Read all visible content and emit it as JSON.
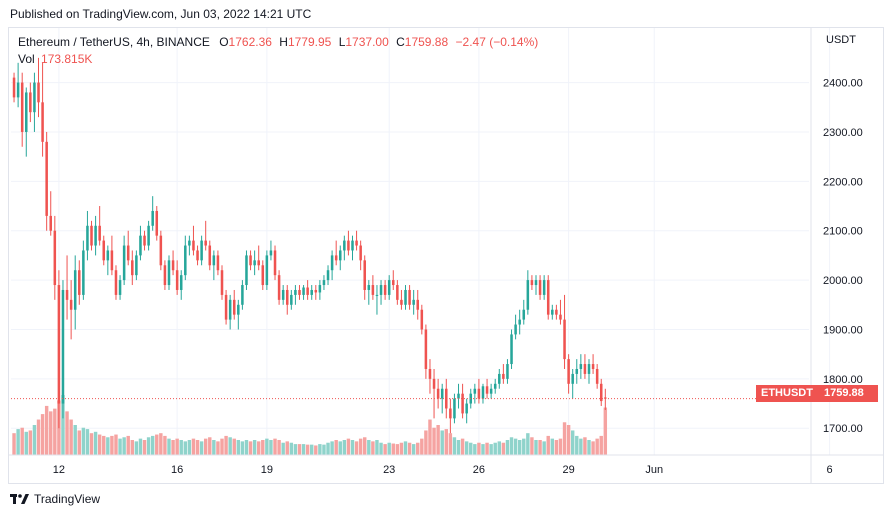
{
  "header": {
    "published": "Published on TradingView.com, Jun 03, 2022 14:21 UTC"
  },
  "legend": {
    "symbol": "Ethereum / TetherUS, 4h, BINANCE",
    "o_label": "O",
    "o_value": "1762.36",
    "h_label": "H",
    "h_value": "1779.95",
    "l_label": "L",
    "l_value": "1737.00",
    "c_label": "C",
    "c_value": "1759.88",
    "change": "−2.47 (−0.14%)",
    "vol_label": "Vol",
    "vol_value": "173.815K"
  },
  "price_axis": {
    "currency": "USDT",
    "ticks": [
      "2400.00",
      "2300.00",
      "2200.00",
      "2100.00",
      "2000.00",
      "1900.00",
      "1800.00",
      "1700.00"
    ],
    "tick_values": [
      2400,
      2300,
      2200,
      2100,
      2000,
      1900,
      1800,
      1700
    ]
  },
  "last_price": {
    "ticker": "ETHUSDT",
    "value": "1759.88",
    "numeric": 1759.88
  },
  "footer": {
    "brand": "TradingView",
    "logo_icon": "tradingview-logo-icon"
  },
  "colors": {
    "up": "#26a69a",
    "down": "#ef5350",
    "vol_up": "#8fd3cb",
    "vol_down": "#f5a3a1",
    "grid": "#f0f3fa"
  },
  "chart_data": {
    "type": "candlestick",
    "symbol": "Ethereum / TetherUS",
    "interval": "4h",
    "exchange": "BINANCE",
    "ylim": [
      1660,
      2470
    ],
    "x_tick_labels": [
      "12",
      "16",
      "19",
      "23",
      "26",
      "29",
      "Jun",
      "6"
    ],
    "x_tick_bar_index": [
      11,
      40,
      62,
      92,
      114,
      136,
      157,
      200
    ],
    "grid": true,
    "candles": [
      [
        2410,
        2420,
        2360,
        2370,
        80
      ],
      [
        2370,
        2440,
        2350,
        2400,
        95
      ],
      [
        2400,
        2420,
        2270,
        2300,
        100
      ],
      [
        2300,
        2390,
        2250,
        2380,
        85
      ],
      [
        2380,
        2400,
        2320,
        2340,
        90
      ],
      [
        2340,
        2420,
        2300,
        2400,
        110
      ],
      [
        2400,
        2450,
        2330,
        2360,
        130
      ],
      [
        2360,
        2440,
        2250,
        2280,
        150
      ],
      [
        2280,
        2300,
        2100,
        2130,
        180
      ],
      [
        2130,
        2180,
        2090,
        2100,
        160
      ],
      [
        2100,
        2130,
        1960,
        1990,
        170
      ],
      [
        1990,
        2020,
        1700,
        1750,
        200
      ],
      [
        1750,
        2000,
        1720,
        1980,
        220
      ],
      [
        1980,
        2050,
        1920,
        1960,
        160
      ],
      [
        1960,
        2000,
        1880,
        1940,
        130
      ],
      [
        1940,
        2050,
        1900,
        2020,
        110
      ],
      [
        2020,
        2040,
        1950,
        1970,
        90
      ],
      [
        1970,
        2080,
        1960,
        2060,
        100
      ],
      [
        2060,
        2140,
        2040,
        2110,
        95
      ],
      [
        2110,
        2120,
        2060,
        2070,
        80
      ],
      [
        2070,
        2130,
        2050,
        2110,
        85
      ],
      [
        2110,
        2150,
        2070,
        2080,
        75
      ],
      [
        2080,
        2090,
        2030,
        2040,
        70
      ],
      [
        2040,
        2070,
        2010,
        2060,
        65
      ],
      [
        2060,
        2090,
        2010,
        2020,
        70
      ],
      [
        2020,
        2030,
        1960,
        1970,
        75
      ],
      [
        1970,
        2010,
        1960,
        2000,
        60
      ],
      [
        2000,
        2090,
        1990,
        2070,
        65
      ],
      [
        2070,
        2100,
        2030,
        2040,
        70
      ],
      [
        2040,
        2060,
        1990,
        2010,
        55
      ],
      [
        2010,
        2060,
        2000,
        2050,
        50
      ],
      [
        2050,
        2110,
        2040,
        2090,
        60
      ],
      [
        2090,
        2100,
        2060,
        2070,
        55
      ],
      [
        2070,
        2120,
        2060,
        2110,
        65
      ],
      [
        2110,
        2170,
        2100,
        2140,
        70
      ],
      [
        2140,
        2150,
        2080,
        2090,
        75
      ],
      [
        2090,
        2100,
        2020,
        2030,
        80
      ],
      [
        2030,
        2040,
        1980,
        1990,
        70
      ],
      [
        1990,
        2050,
        1980,
        2040,
        60
      ],
      [
        2040,
        2060,
        2010,
        2020,
        55
      ],
      [
        2020,
        2040,
        1970,
        1980,
        60
      ],
      [
        1980,
        2020,
        1960,
        2010,
        55
      ],
      [
        2010,
        2090,
        2000,
        2070,
        50
      ],
      [
        2070,
        2090,
        2050,
        2080,
        55
      ],
      [
        2080,
        2110,
        2050,
        2060,
        60
      ],
      [
        2060,
        2070,
        2030,
        2040,
        55
      ],
      [
        2040,
        2090,
        2030,
        2080,
        50
      ],
      [
        2080,
        2120,
        2060,
        2070,
        60
      ],
      [
        2070,
        2080,
        2020,
        2030,
        65
      ],
      [
        2030,
        2060,
        2000,
        2050,
        55
      ],
      [
        2050,
        2060,
        2010,
        2020,
        50
      ],
      [
        2020,
        2030,
        1960,
        1970,
        60
      ],
      [
        1970,
        1980,
        1910,
        1920,
        70
      ],
      [
        1920,
        1970,
        1900,
        1960,
        65
      ],
      [
        1960,
        1980,
        1920,
        1930,
        60
      ],
      [
        1930,
        1960,
        1900,
        1950,
        55
      ],
      [
        1950,
        2000,
        1940,
        1990,
        50
      ],
      [
        1990,
        2060,
        1980,
        2050,
        55
      ],
      [
        2050,
        2060,
        2020,
        2030,
        50
      ],
      [
        2030,
        2060,
        2010,
        2040,
        55
      ],
      [
        2040,
        2070,
        2020,
        2030,
        50
      ],
      [
        2030,
        2040,
        1980,
        1990,
        55
      ],
      [
        1990,
        2060,
        1980,
        2050,
        60
      ],
      [
        2050,
        2080,
        2040,
        2060,
        55
      ],
      [
        2060,
        2070,
        2000,
        2010,
        60
      ],
      [
        2010,
        2020,
        1950,
        1960,
        55
      ],
      [
        1960,
        1990,
        1950,
        1980,
        45
      ],
      [
        1980,
        1990,
        1930,
        1950,
        50
      ],
      [
        1950,
        1980,
        1940,
        1970,
        45
      ],
      [
        1970,
        1990,
        1950,
        1980,
        40
      ],
      [
        1980,
        1990,
        1960,
        1970,
        40
      ],
      [
        1970,
        1990,
        1960,
        1985,
        40
      ],
      [
        1985,
        2000,
        1960,
        1970,
        38
      ],
      [
        1970,
        1990,
        1960,
        1980,
        38
      ],
      [
        1980,
        1990,
        1960,
        1975,
        35
      ],
      [
        1975,
        2000,
        1960,
        1990,
        40
      ],
      [
        1990,
        2010,
        1980,
        2000,
        38
      ],
      [
        2000,
        2030,
        1990,
        2020,
        45
      ],
      [
        2020,
        2060,
        2000,
        2050,
        50
      ],
      [
        2050,
        2080,
        2030,
        2040,
        55
      ],
      [
        2040,
        2070,
        2020,
        2060,
        50
      ],
      [
        2060,
        2090,
        2040,
        2080,
        55
      ],
      [
        2080,
        2100,
        2050,
        2060,
        60
      ],
      [
        2060,
        2090,
        2040,
        2080,
        55
      ],
      [
        2080,
        2100,
        2060,
        2070,
        50
      ],
      [
        2070,
        2080,
        2020,
        2040,
        60
      ],
      [
        2040,
        2050,
        1960,
        1980,
        65
      ],
      [
        1980,
        2000,
        1950,
        1990,
        55
      ],
      [
        1990,
        2010,
        1960,
        1970,
        50
      ],
      [
        1970,
        1990,
        1930,
        1970,
        55
      ],
      [
        1970,
        2000,
        1950,
        1990,
        45
      ],
      [
        1990,
        2000,
        1960,
        1970,
        40
      ],
      [
        1970,
        2010,
        1960,
        2000,
        45
      ],
      [
        2000,
        2020,
        1980,
        1990,
        42
      ],
      [
        1990,
        2000,
        1950,
        1960,
        40
      ],
      [
        1960,
        1980,
        1940,
        1950,
        45
      ],
      [
        1950,
        1990,
        1940,
        1980,
        50
      ],
      [
        1980,
        1990,
        1940,
        1950,
        45
      ],
      [
        1950,
        1980,
        1930,
        1960,
        40
      ],
      [
        1960,
        1980,
        1920,
        1940,
        45
      ],
      [
        1940,
        1950,
        1890,
        1900,
        60
      ],
      [
        1900,
        1910,
        1800,
        1820,
        90
      ],
      [
        1820,
        1840,
        1770,
        1800,
        130
      ],
      [
        1800,
        1820,
        1720,
        1780,
        100
      ],
      [
        1780,
        1800,
        1740,
        1760,
        110
      ],
      [
        1760,
        1790,
        1730,
        1780,
        90
      ],
      [
        1780,
        1800,
        1720,
        1740,
        95
      ],
      [
        1740,
        1760,
        1690,
        1720,
        80
      ],
      [
        1720,
        1770,
        1710,
        1760,
        65
      ],
      [
        1760,
        1790,
        1740,
        1770,
        55
      ],
      [
        1770,
        1790,
        1720,
        1730,
        60
      ],
      [
        1730,
        1760,
        1710,
        1750,
        50
      ],
      [
        1750,
        1780,
        1740,
        1770,
        45
      ],
      [
        1770,
        1790,
        1750,
        1780,
        40
      ],
      [
        1780,
        1800,
        1750,
        1760,
        45
      ],
      [
        1760,
        1790,
        1750,
        1785,
        40
      ],
      [
        1785,
        1800,
        1760,
        1770,
        45
      ],
      [
        1770,
        1790,
        1760,
        1780,
        40
      ],
      [
        1780,
        1800,
        1770,
        1790,
        45
      ],
      [
        1790,
        1820,
        1780,
        1810,
        50
      ],
      [
        1810,
        1830,
        1790,
        1800,
        45
      ],
      [
        1800,
        1840,
        1790,
        1830,
        55
      ],
      [
        1830,
        1900,
        1820,
        1890,
        65
      ],
      [
        1890,
        1930,
        1880,
        1910,
        60
      ],
      [
        1910,
        1940,
        1890,
        1920,
        55
      ],
      [
        1920,
        1960,
        1910,
        1940,
        60
      ],
      [
        1940,
        2020,
        1930,
        2000,
        80
      ],
      [
        2000,
        2010,
        1980,
        1990,
        65
      ],
      [
        1990,
        2010,
        1970,
        2000,
        55
      ],
      [
        2000,
        2010,
        1960,
        1970,
        55
      ],
      [
        1970,
        2010,
        1960,
        2000,
        50
      ],
      [
        2000,
        2010,
        1920,
        1930,
        70
      ],
      [
        1930,
        1950,
        1920,
        1940,
        60
      ],
      [
        1940,
        1950,
        1920,
        1930,
        55
      ],
      [
        1930,
        1960,
        1910,
        1920,
        60
      ],
      [
        1920,
        1970,
        1820,
        1840,
        120
      ],
      [
        1840,
        1850,
        1770,
        1790,
        110
      ],
      [
        1790,
        1820,
        1760,
        1810,
        90
      ],
      [
        1810,
        1840,
        1790,
        1820,
        70
      ],
      [
        1820,
        1850,
        1800,
        1830,
        60
      ],
      [
        1830,
        1850,
        1800,
        1810,
        65
      ],
      [
        1810,
        1840,
        1790,
        1830,
        55
      ],
      [
        1830,
        1850,
        1810,
        1820,
        50
      ],
      [
        1820,
        1830,
        1780,
        1790,
        60
      ],
      [
        1790,
        1800,
        1745,
        1755,
        70
      ],
      [
        1762.36,
        1779.95,
        1737,
        1759.88,
        174
      ]
    ]
  }
}
